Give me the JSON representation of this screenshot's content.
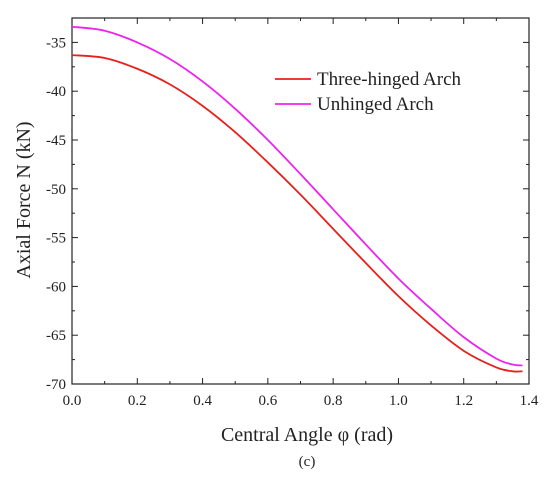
{
  "chart_data": {
    "type": "line",
    "title": "",
    "xlabel": "Central Angle φ (rad)",
    "ylabel": "Axial Force N (kN)",
    "caption": "(c)",
    "xlim": [
      0.0,
      1.4
    ],
    "ylim": [
      -70,
      -32.5
    ],
    "x_ticks": [
      "0.0",
      "0.2",
      "0.4",
      "0.6",
      "0.8",
      "1.0",
      "1.2",
      "1.4"
    ],
    "y_ticks": [
      "-35",
      "-40",
      "-45",
      "-50",
      "-55",
      "-60",
      "-65",
      "-70"
    ],
    "grid": false,
    "legend_position": "top-right",
    "x": [
      0.0,
      0.1,
      0.2,
      0.3,
      0.4,
      0.5,
      0.6,
      0.7,
      0.8,
      0.9,
      1.0,
      1.1,
      1.2,
      1.3,
      1.35,
      1.38
    ],
    "series": [
      {
        "name": "Three-hinged Arch",
        "color": "#e8201c",
        "values": [
          -36.3,
          -36.6,
          -37.7,
          -39.3,
          -41.5,
          -44.2,
          -47.3,
          -50.6,
          -54.1,
          -57.6,
          -61.0,
          -64.0,
          -66.6,
          -68.3,
          -68.7,
          -68.7
        ]
      },
      {
        "name": "Unhinged Arch",
        "color": "#ee22ee",
        "values": [
          -33.4,
          -33.8,
          -35.0,
          -36.7,
          -39.0,
          -41.8,
          -45.0,
          -48.5,
          -52.1,
          -55.7,
          -59.2,
          -62.3,
          -65.2,
          -67.4,
          -68.0,
          -68.1
        ]
      }
    ]
  }
}
